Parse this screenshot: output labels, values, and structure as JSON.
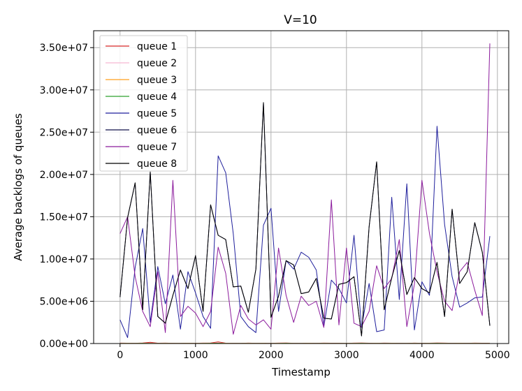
{
  "chart_data": {
    "type": "line",
    "title": "V=10",
    "xlabel": "Timestamp",
    "ylabel": "Average backlogs of queues",
    "xlim": [
      -350,
      5150
    ],
    "ylim": [
      0,
      37000000
    ],
    "xticks": [
      0,
      1000,
      2000,
      3000,
      4000,
      5000
    ],
    "xtick_labels": [
      "0",
      "1000",
      "2000",
      "3000",
      "4000",
      "5000"
    ],
    "yticks": [
      0,
      5000000,
      10000000,
      15000000,
      20000000,
      25000000,
      30000000,
      35000000
    ],
    "ytick_labels": [
      "0.00e+00",
      "5.00e+06",
      "1.00e+07",
      "1.50e+07",
      "2.00e+07",
      "2.50e+07",
      "3.00e+07",
      "3.50e+07"
    ],
    "grid": true,
    "legend_position": "top-left",
    "x": [
      0,
      100,
      200,
      300,
      400,
      500,
      600,
      700,
      800,
      900,
      1000,
      1100,
      1200,
      1300,
      1400,
      1500,
      1600,
      1700,
      1800,
      1900,
      2000,
      2100,
      2200,
      2300,
      2400,
      2500,
      2600,
      2700,
      2800,
      2900,
      3000,
      3100,
      3200,
      3300,
      3400,
      3500,
      3600,
      3700,
      3800,
      3900,
      4000,
      4100,
      4200,
      4300,
      4400,
      4500,
      4600,
      4700,
      4800,
      4900
    ],
    "series": [
      {
        "name": "queue 1",
        "color": "#d62728",
        "values": [
          50000,
          40000,
          30000,
          60000,
          150000,
          40000,
          50000,
          30000,
          20000,
          40000,
          30000,
          50000,
          60000,
          200000,
          40000,
          30000,
          20000,
          50000,
          30000,
          40000,
          30000,
          50000,
          60000,
          30000,
          20000,
          40000,
          30000,
          50000,
          40000,
          30000,
          20000,
          50000,
          60000,
          40000,
          30000,
          50000,
          40000,
          30000,
          20000,
          50000,
          30000,
          40000,
          60000,
          50000,
          30000,
          40000,
          30000,
          50000,
          40000,
          30000
        ]
      },
      {
        "name": "queue 2",
        "color": "#f7b6d2",
        "values": [
          20000,
          30000,
          20000,
          40000,
          30000,
          20000,
          30000,
          20000,
          10000,
          30000,
          20000,
          30000,
          40000,
          60000,
          30000,
          20000,
          10000,
          30000,
          20000,
          30000,
          20000,
          30000,
          40000,
          20000,
          10000,
          30000,
          20000,
          30000,
          20000,
          10000,
          20000,
          30000,
          40000,
          20000,
          30000,
          20000,
          30000,
          20000,
          10000,
          30000,
          20000,
          30000,
          40000,
          30000,
          20000,
          30000,
          20000,
          30000,
          20000,
          10000
        ]
      },
      {
        "name": "queue 3",
        "color": "#ff9f1c",
        "values": [
          10000,
          20000,
          10000,
          30000,
          20000,
          10000,
          20000,
          10000,
          10000,
          20000,
          10000,
          20000,
          30000,
          40000,
          20000,
          10000,
          10000,
          20000,
          10000,
          20000,
          10000,
          20000,
          30000,
          10000,
          10000,
          20000,
          10000,
          20000,
          10000,
          10000,
          10000,
          20000,
          30000,
          10000,
          20000,
          10000,
          20000,
          10000,
          10000,
          20000,
          10000,
          20000,
          30000,
          20000,
          10000,
          20000,
          10000,
          20000,
          10000,
          10000
        ]
      },
      {
        "name": "queue 4",
        "color": "#2ca02c",
        "values": [
          10000,
          10000,
          10000,
          20000,
          10000,
          10000,
          10000,
          10000,
          10000,
          10000,
          10000,
          10000,
          20000,
          30000,
          10000,
          10000,
          10000,
          10000,
          10000,
          10000,
          10000,
          10000,
          20000,
          10000,
          10000,
          10000,
          10000,
          10000,
          10000,
          10000,
          10000,
          10000,
          20000,
          10000,
          10000,
          10000,
          10000,
          10000,
          10000,
          10000,
          10000,
          10000,
          20000,
          10000,
          10000,
          10000,
          10000,
          10000,
          10000,
          10000
        ]
      },
      {
        "name": "queue 5",
        "color": "#1f1f9c",
        "values": [
          2800000,
          700000,
          9000000,
          13600000,
          2500000,
          9100000,
          4700000,
          8100000,
          1700000,
          8500000,
          6000000,
          3200000,
          1800000,
          22200000,
          20200000,
          13000000,
          3200000,
          2000000,
          1300000,
          14000000,
          16000000,
          3800000,
          9800000,
          8800000,
          10800000,
          10200000,
          8700000,
          2000000,
          7500000,
          6500000,
          4800000,
          12800000,
          1900000,
          7100000,
          1400000,
          1600000,
          17300000,
          5200000,
          18900000,
          1600000,
          7300000,
          5700000,
          25700000,
          14100000,
          7900000,
          4300000,
          4800000,
          5400000,
          5500000,
          12700000
        ]
      },
      {
        "name": "queue 6",
        "color": "#10104a",
        "values": [
          5500000,
          14900000,
          19000000,
          4000000,
          20300000,
          3200000,
          2400000,
          5700000,
          8700000,
          6500000,
          10400000,
          3800000,
          16400000,
          12800000,
          12300000,
          6700000,
          6800000,
          3700000,
          8800000,
          28500000,
          3100000,
          5600000,
          9800000,
          9300000,
          5900000,
          6100000,
          7700000,
          3000000,
          2900000,
          7000000,
          7200000,
          7900000,
          900000,
          13800000,
          21500000,
          4000000,
          7800000,
          11000000,
          5800000,
          7800000,
          6500000,
          6000000,
          9600000,
          3200000,
          15900000,
          7100000,
          8500000,
          14300000,
          10800000,
          2100000
        ]
      },
      {
        "name": "queue 7",
        "color": "#8b1a9c",
        "values": [
          13000000,
          15000000,
          7900000,
          3800000,
          2000000,
          8500000,
          1300000,
          19300000,
          3200000,
          4400000,
          3600000,
          2000000,
          3800000,
          11400000,
          8300000,
          1100000,
          4500000,
          2900000,
          2200000,
          2800000,
          1700000,
          11300000,
          5700000,
          2500000,
          5600000,
          4500000,
          5000000,
          1900000,
          17000000,
          2200000,
          11300000,
          2400000,
          2000000,
          3800000,
          9200000,
          6500000,
          7700000,
          12300000,
          2000000,
          7000000,
          19300000,
          13000000,
          8500000,
          5000000,
          3900000,
          8500000,
          9600000,
          6300000,
          3300000,
          35500000
        ]
      },
      {
        "name": "queue 8",
        "color": "#000000",
        "values": [
          5500000,
          14900000,
          19000000,
          4000000,
          20300000,
          3200000,
          2400000,
          5700000,
          8700000,
          6500000,
          10400000,
          3800000,
          16400000,
          12800000,
          12300000,
          6700000,
          6800000,
          3700000,
          8800000,
          28500000,
          3100000,
          5600000,
          9800000,
          9300000,
          5900000,
          6100000,
          7700000,
          3000000,
          2900000,
          7000000,
          7200000,
          7900000,
          900000,
          13800000,
          21500000,
          4000000,
          7800000,
          11000000,
          5800000,
          7800000,
          6500000,
          6000000,
          9600000,
          3200000,
          15900000,
          7100000,
          8500000,
          14300000,
          10800000,
          2100000
        ]
      }
    ]
  }
}
